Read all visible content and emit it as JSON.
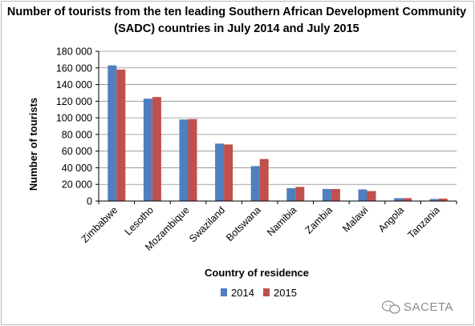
{
  "chart_data": {
    "type": "bar",
    "title_lines": [
      "Number of tourists from the ten leading Southern African Development Community",
      "(SADC) countries in July 2014 and July 2015"
    ],
    "xlabel": "Country of residence",
    "ylabel": "Number of tourists",
    "categories": [
      "Zimbabwe",
      "Lesotho",
      "Mozambique",
      "Swaziland",
      "Botswana",
      "Namibia",
      "Zambia",
      "Malawi",
      "Angola",
      "Tanzania"
    ],
    "series": [
      {
        "name": "2014",
        "color": "#4f7fbf",
        "values": [
          163000,
          123000,
          98000,
          69000,
          42000,
          15500,
          14500,
          14000,
          3500,
          2500
        ]
      },
      {
        "name": "2015",
        "color": "#c0504d",
        "values": [
          158000,
          125000,
          98500,
          68000,
          50500,
          17000,
          14500,
          12000,
          3500,
          3000
        ]
      }
    ],
    "ylim": [
      0,
      180000
    ],
    "yticks": [
      0,
      20000,
      40000,
      60000,
      80000,
      100000,
      120000,
      140000,
      160000,
      180000
    ],
    "ytick_labels": [
      "0",
      "20 000",
      "40 000",
      "60 000",
      "80 000",
      "100 000",
      "120 000",
      "140 000",
      "160 000",
      "180 000"
    ],
    "grid": true,
    "legend_position": "bottom"
  },
  "watermark": {
    "text": "SACETA",
    "icon": "wechat-icon"
  }
}
